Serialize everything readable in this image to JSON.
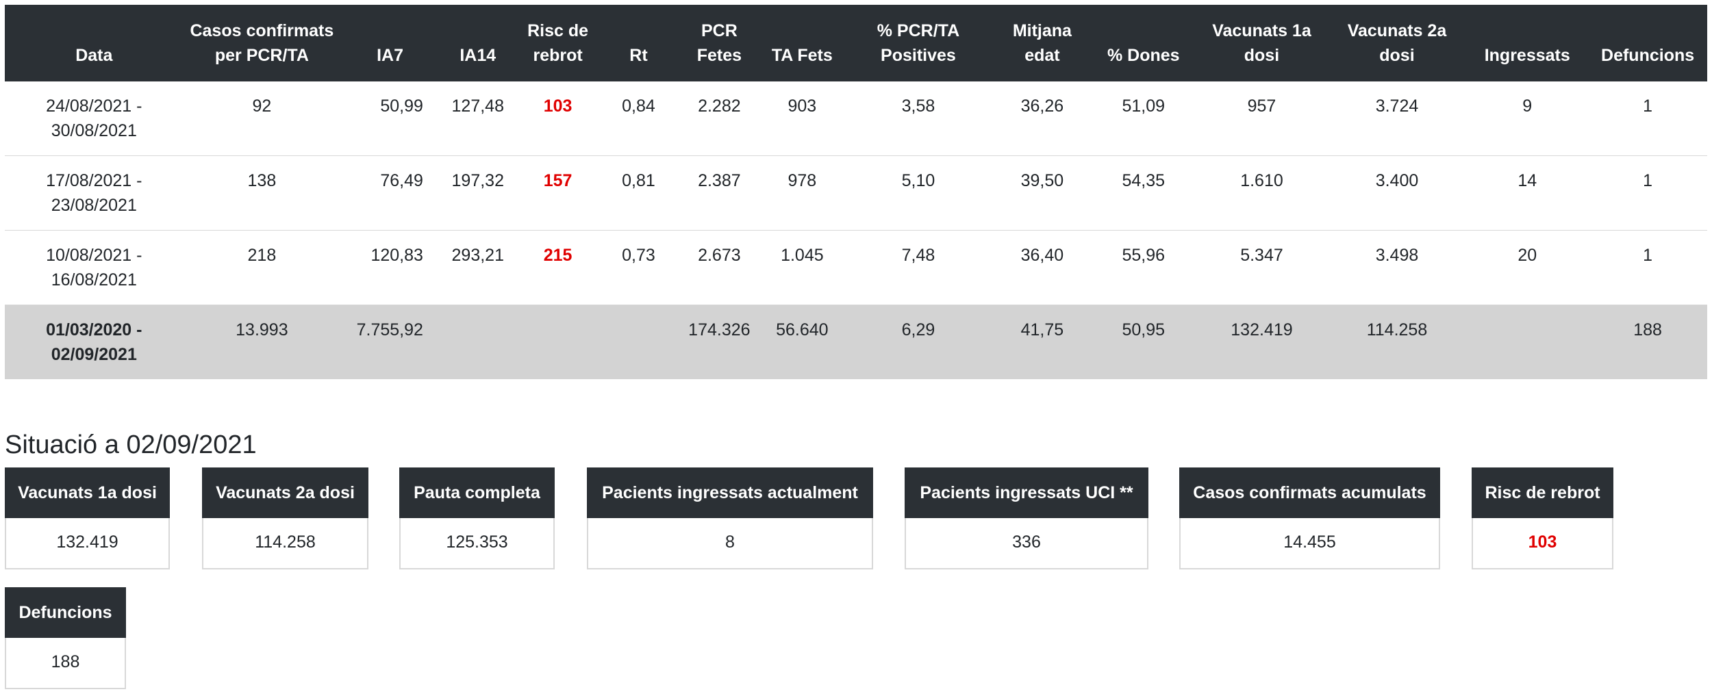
{
  "table": {
    "headers": [
      "Data",
      "Casos confirmats per PCR/TA",
      "IA7",
      "IA14",
      "Risc de rebrot",
      "Rt",
      "PCR Fetes",
      "TA Fets",
      "% PCR/TA Positives",
      "Mitjana edat",
      "% Dones",
      "Vacunats 1a dosi",
      "Vacunats 2a dosi",
      "Ingressats",
      "Defuncions"
    ],
    "rows": [
      {
        "date_line1": "24/08/2021 -",
        "date_line2": "30/08/2021",
        "cases": "92",
        "ia7": "50,99",
        "ia14": "127,48",
        "risk": "103",
        "rt": "0,84",
        "pcr": "2.282",
        "ta": "903",
        "positives": "3,58",
        "age": "36,26",
        "women": "51,09",
        "vac1": "957",
        "vac2": "3.724",
        "admitted": "9",
        "deaths": "1"
      },
      {
        "date_line1": "17/08/2021 -",
        "date_line2": "23/08/2021",
        "cases": "138",
        "ia7": "76,49",
        "ia14": "197,32",
        "risk": "157",
        "rt": "0,81",
        "pcr": "2.387",
        "ta": "978",
        "positives": "5,10",
        "age": "39,50",
        "women": "54,35",
        "vac1": "1.610",
        "vac2": "3.400",
        "admitted": "14",
        "deaths": "1"
      },
      {
        "date_line1": "10/08/2021 -",
        "date_line2": "16/08/2021",
        "cases": "218",
        "ia7": "120,83",
        "ia14": "293,21",
        "risk": "215",
        "rt": "0,73",
        "pcr": "2.673",
        "ta": "1.045",
        "positives": "7,48",
        "age": "36,40",
        "women": "55,96",
        "vac1": "5.347",
        "vac2": "3.498",
        "admitted": "20",
        "deaths": "1"
      }
    ],
    "total": {
      "date_line1": "01/03/2020 -",
      "date_line2": "02/09/2021",
      "cases": "13.993",
      "ia7": "7.755,92",
      "ia14": "",
      "risk": "",
      "rt": "",
      "pcr": "174.326",
      "ta": "56.640",
      "positives": "6,29",
      "age": "41,75",
      "women": "50,95",
      "vac1": "132.419",
      "vac2": "114.258",
      "admitted": "",
      "deaths": "188"
    }
  },
  "situation": {
    "title": "Situació a 02/09/2021",
    "cards": [
      {
        "label": "Vacunats 1a dosi",
        "value": "132.419"
      },
      {
        "label": "Vacunats 2a dosi",
        "value": "114.258"
      },
      {
        "label": "Pauta completa",
        "value": "125.353"
      },
      {
        "label": "Pacients ingressats actualment",
        "value": "8"
      },
      {
        "label": "Pacients ingressats UCI **",
        "value": "336"
      },
      {
        "label": "Casos confirmats acumulats",
        "value": "14.455"
      },
      {
        "label": "Risc de rebrot",
        "value": "103"
      },
      {
        "label": "Defuncions",
        "value": "188"
      }
    ]
  },
  "colors": {
    "header_bg": "#2b3035",
    "risk_text": "#e00000",
    "total_row_bg": "#d3d3d3"
  }
}
